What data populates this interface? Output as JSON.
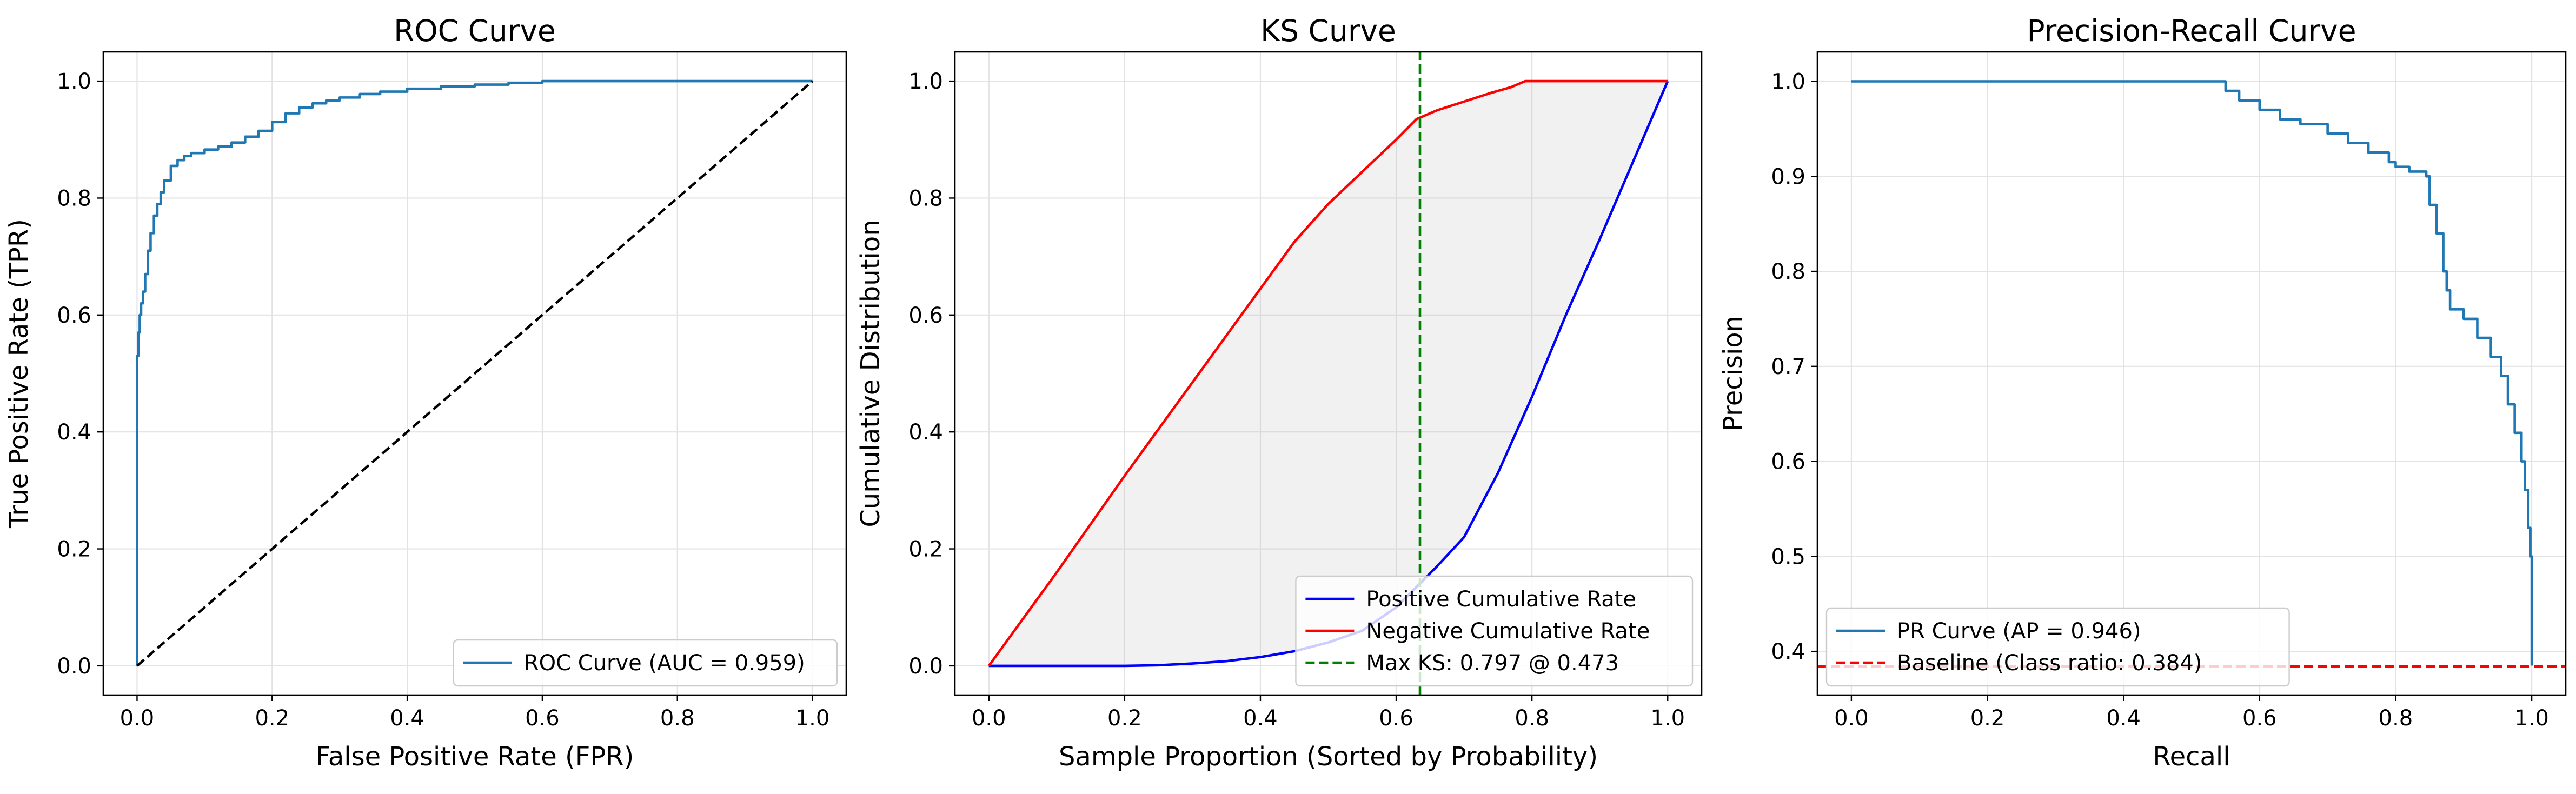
{
  "chart_data": [
    {
      "type": "line",
      "title": "ROC Curve",
      "xlabel": "False Positive Rate (FPR)",
      "ylabel": "True Positive Rate (TPR)",
      "xlim": [
        -0.05,
        1.05
      ],
      "ylim": [
        -0.05,
        1.05
      ],
      "xticks": [
        0.0,
        0.2,
        0.4,
        0.6,
        0.8,
        1.0
      ],
      "yticks": [
        0.0,
        0.2,
        0.4,
        0.6,
        0.8,
        1.0
      ],
      "grid": true,
      "legend_position": "lower-right",
      "series": [
        {
          "name": "ROC Curve (AUC = 0.959)",
          "color": "#1f77b4",
          "style": "step",
          "x": [
            0,
            0,
            0.002,
            0.004,
            0.006,
            0.009,
            0.012,
            0.016,
            0.02,
            0.025,
            0.03,
            0.035,
            0.04,
            0.05,
            0.06,
            0.07,
            0.08,
            0.1,
            0.12,
            0.14,
            0.16,
            0.18,
            0.2,
            0.22,
            0.24,
            0.26,
            0.28,
            0.3,
            0.33,
            0.36,
            0.4,
            0.45,
            0.5,
            0.55,
            0.6,
            0.7,
            0.8,
            0.9,
            1.0
          ],
          "y": [
            0,
            0.53,
            0.57,
            0.6,
            0.62,
            0.64,
            0.67,
            0.71,
            0.74,
            0.77,
            0.79,
            0.81,
            0.83,
            0.855,
            0.865,
            0.872,
            0.877,
            0.883,
            0.888,
            0.895,
            0.905,
            0.915,
            0.93,
            0.945,
            0.955,
            0.962,
            0.967,
            0.972,
            0.978,
            0.982,
            0.987,
            0.991,
            0.994,
            0.997,
            1.0,
            1.0,
            1.0,
            1.0,
            1.0
          ]
        },
        {
          "name": "",
          "color": "#000000",
          "style": "dashed",
          "x": [
            0,
            1
          ],
          "y": [
            0,
            1
          ]
        }
      ]
    },
    {
      "type": "line",
      "title": "KS Curve",
      "xlabel": "Sample Proportion (Sorted by Probability)",
      "ylabel": "Cumulative Distribution",
      "xlim": [
        -0.05,
        1.05
      ],
      "ylim": [
        -0.05,
        1.05
      ],
      "xticks": [
        0.0,
        0.2,
        0.4,
        0.6,
        0.8,
        1.0
      ],
      "yticks": [
        0.0,
        0.2,
        0.4,
        0.6,
        0.8,
        1.0
      ],
      "grid": true,
      "legend_position": "lower-right",
      "fill_between": {
        "color": "#b0b0b0",
        "opacity": 0.18
      },
      "series": [
        {
          "name": "Positive Cumulative Rate",
          "color": "#0000ff",
          "style": "solid",
          "x": [
            0,
            0.1,
            0.2,
            0.25,
            0.3,
            0.35,
            0.4,
            0.45,
            0.5,
            0.55,
            0.6,
            0.63,
            0.66,
            0.7,
            0.75,
            0.8,
            0.85,
            0.9,
            0.95,
            1.0
          ],
          "y": [
            0,
            0,
            0,
            0.001,
            0.004,
            0.008,
            0.015,
            0.025,
            0.04,
            0.06,
            0.1,
            0.135,
            0.17,
            0.22,
            0.33,
            0.46,
            0.6,
            0.73,
            0.865,
            1.0
          ]
        },
        {
          "name": "Negative Cumulative Rate",
          "color": "#ff0000",
          "style": "solid",
          "x": [
            0,
            0.1,
            0.2,
            0.3,
            0.4,
            0.45,
            0.5,
            0.55,
            0.6,
            0.63,
            0.66,
            0.7,
            0.74,
            0.77,
            0.79,
            0.85,
            1.0
          ],
          "y": [
            0,
            0.16,
            0.325,
            0.485,
            0.645,
            0.725,
            0.79,
            0.845,
            0.9,
            0.935,
            0.95,
            0.965,
            0.98,
            0.99,
            1.0,
            1.0,
            1.0
          ]
        },
        {
          "name": "Max KS: 0.797 @ 0.473",
          "color": "#008000",
          "style": "dashed",
          "x": [
            0.635,
            0.635
          ],
          "y": [
            -0.05,
            1.05
          ]
        }
      ]
    },
    {
      "type": "line",
      "title": "Precision-Recall Curve",
      "xlabel": "Recall",
      "ylabel": "Precision",
      "xlim": [
        -0.05,
        1.05
      ],
      "ylim": [
        0.354,
        1.031
      ],
      "xticks": [
        0.0,
        0.2,
        0.4,
        0.6,
        0.8,
        1.0
      ],
      "yticks": [
        0.4,
        0.5,
        0.6,
        0.7,
        0.8,
        0.9,
        1.0
      ],
      "grid": true,
      "legend_position": "lower-left",
      "series": [
        {
          "name": "PR Curve (AP = 0.946)",
          "color": "#1f77b4",
          "style": "step",
          "x": [
            0,
            0.53,
            0.55,
            0.57,
            0.6,
            0.63,
            0.66,
            0.7,
            0.73,
            0.76,
            0.79,
            0.8,
            0.82,
            0.845,
            0.85,
            0.86,
            0.87,
            0.875,
            0.88,
            0.9,
            0.92,
            0.94,
            0.955,
            0.965,
            0.975,
            0.985,
            0.99,
            0.995,
            0.998,
            1.0
          ],
          "y": [
            1.0,
            1.0,
            0.99,
            0.98,
            0.97,
            0.96,
            0.955,
            0.945,
            0.935,
            0.925,
            0.915,
            0.91,
            0.905,
            0.9,
            0.87,
            0.84,
            0.8,
            0.78,
            0.76,
            0.75,
            0.73,
            0.71,
            0.69,
            0.66,
            0.63,
            0.6,
            0.57,
            0.53,
            0.5,
            0.385
          ]
        },
        {
          "name": "Baseline (Class ratio: 0.384)",
          "color": "#ff0000",
          "style": "dashed",
          "x": [
            -0.05,
            1.05
          ],
          "y": [
            0.384,
            0.384
          ]
        }
      ]
    }
  ]
}
